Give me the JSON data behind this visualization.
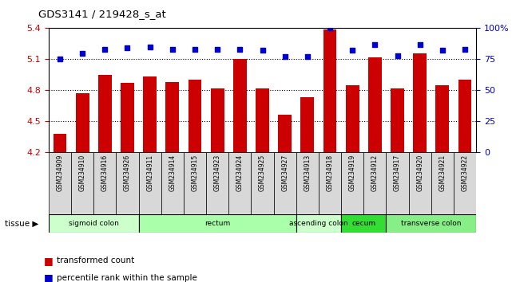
{
  "title": "GDS3141 / 219428_s_at",
  "samples": [
    "GSM234909",
    "GSM234910",
    "GSM234916",
    "GSM234926",
    "GSM234911",
    "GSM234914",
    "GSM234915",
    "GSM234923",
    "GSM234924",
    "GSM234925",
    "GSM234927",
    "GSM234913",
    "GSM234918",
    "GSM234919",
    "GSM234912",
    "GSM234917",
    "GSM234920",
    "GSM234921",
    "GSM234922"
  ],
  "bar_values": [
    4.38,
    4.77,
    4.95,
    4.87,
    4.93,
    4.88,
    4.9,
    4.82,
    5.1,
    4.82,
    4.56,
    4.73,
    5.39,
    4.85,
    5.12,
    4.82,
    5.16,
    4.85,
    4.9
  ],
  "percentile_values": [
    75,
    80,
    83,
    84,
    85,
    83,
    83,
    83,
    83,
    82,
    77,
    77,
    100,
    82,
    87,
    78,
    87,
    82,
    83
  ],
  "bar_color": "#cc0000",
  "dot_color": "#0000cc",
  "ylim_left": [
    4.2,
    5.4
  ],
  "ylim_right": [
    0,
    100
  ],
  "yticks_left": [
    4.2,
    4.5,
    4.8,
    5.1,
    5.4
  ],
  "yticks_right": [
    0,
    25,
    50,
    75,
    100
  ],
  "ytick_labels_right": [
    "0",
    "25",
    "50",
    "75",
    "100%"
  ],
  "hlines": [
    5.1,
    4.8,
    4.5
  ],
  "tissues": [
    {
      "label": "sigmoid colon",
      "start": 0,
      "end": 4,
      "color": "#ccffcc"
    },
    {
      "label": "rectum",
      "start": 4,
      "end": 11,
      "color": "#aaffaa"
    },
    {
      "label": "ascending colon",
      "start": 11,
      "end": 13,
      "color": "#ccffcc"
    },
    {
      "label": "cecum",
      "start": 13,
      "end": 15,
      "color": "#33dd33"
    },
    {
      "label": "transverse colon",
      "start": 15,
      "end": 19,
      "color": "#88ee88"
    }
  ],
  "tissue_label": "tissue",
  "legend_bar": "transformed count",
  "legend_dot": "percentile rank within the sample",
  "bar_width": 0.6,
  "background_color": "#ffffff",
  "plot_bg_color": "#ffffff",
  "n_samples": 19
}
